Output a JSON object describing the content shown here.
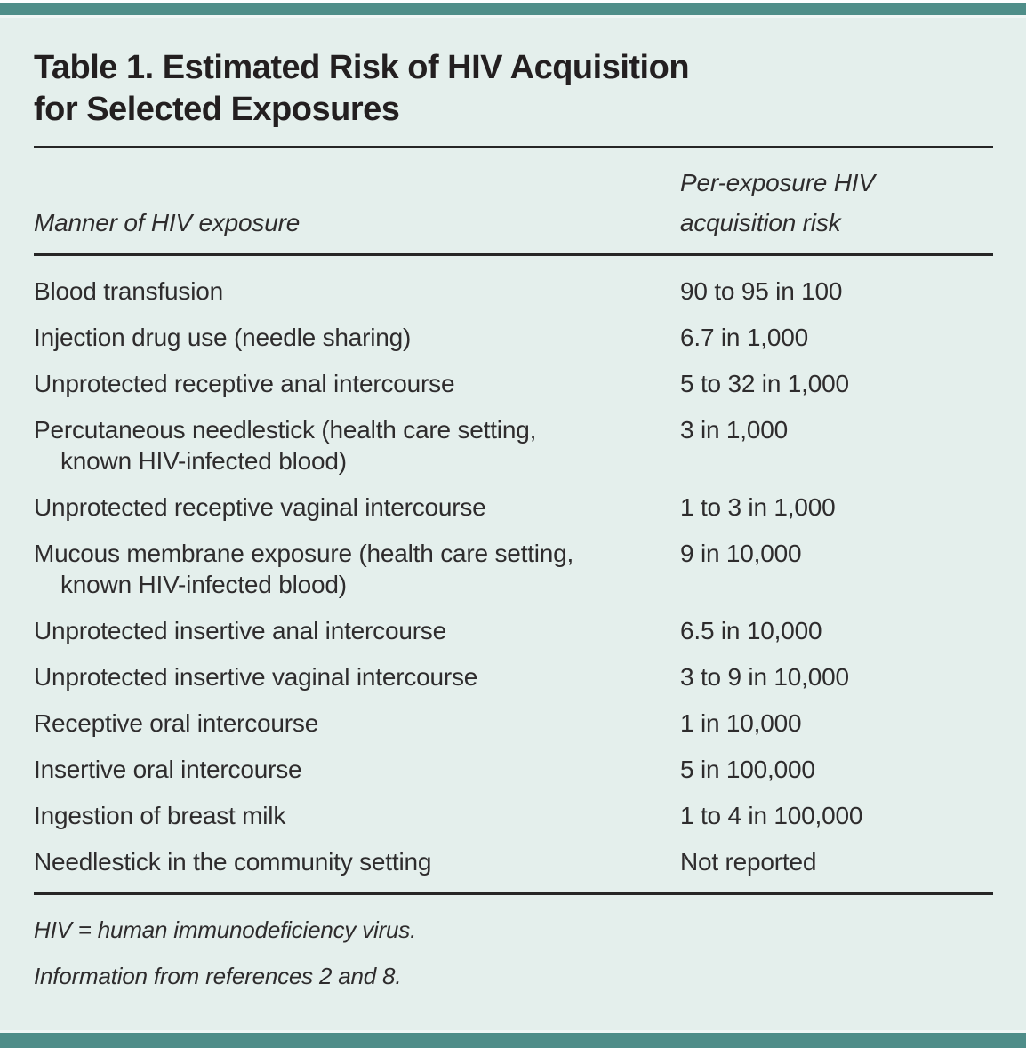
{
  "page": {
    "title_lines": [
      "Table 1. Estimated Risk of HIV Acquisition",
      "for Selected Exposures"
    ]
  },
  "table": {
    "col1_header": "Manner of HIV exposure",
    "col2_header_lines": [
      "Per-exposure HIV",
      "acquisition risk"
    ],
    "rows": [
      {
        "exposure_lines": [
          "Blood transfusion"
        ],
        "risk": "90 to 95 in 100"
      },
      {
        "exposure_lines": [
          "Injection drug use (needle sharing)"
        ],
        "risk": "6.7 in 1,000"
      },
      {
        "exposure_lines": [
          "Unprotected receptive anal intercourse"
        ],
        "risk": "5 to 32 in 1,000"
      },
      {
        "exposure_lines": [
          "Percutaneous needlestick (health care setting,",
          "known HIV-infected blood)"
        ],
        "risk": "3 in 1,000"
      },
      {
        "exposure_lines": [
          "Unprotected receptive vaginal intercourse"
        ],
        "risk": "1 to 3 in 1,000"
      },
      {
        "exposure_lines": [
          "Mucous membrane exposure (health care setting,",
          "known HIV-infected blood)"
        ],
        "risk": "9 in 10,000"
      },
      {
        "exposure_lines": [
          "Unprotected insertive anal intercourse"
        ],
        "risk": "6.5 in 10,000"
      },
      {
        "exposure_lines": [
          "Unprotected insertive vaginal intercourse"
        ],
        "risk": "3 to 9 in 10,000"
      },
      {
        "exposure_lines": [
          "Receptive oral intercourse"
        ],
        "risk": "1 in 10,000"
      },
      {
        "exposure_lines": [
          "Insertive oral intercourse"
        ],
        "risk": "5 in 100,000"
      },
      {
        "exposure_lines": [
          "Ingestion of breast milk"
        ],
        "risk": "1 to 4 in 100,000"
      },
      {
        "exposure_lines": [
          "Needlestick in the community setting"
        ],
        "risk": "Not reported"
      }
    ]
  },
  "footnotes": [
    "HIV = human immunodeficiency virus.",
    "Information from references 2 and 8."
  ],
  "colors": {
    "accent_teal": "#4f8e89",
    "panel_bg": "#e4efec",
    "rule": "#262626",
    "title_text": "#231f20",
    "body_text": "#2e2c2d"
  }
}
